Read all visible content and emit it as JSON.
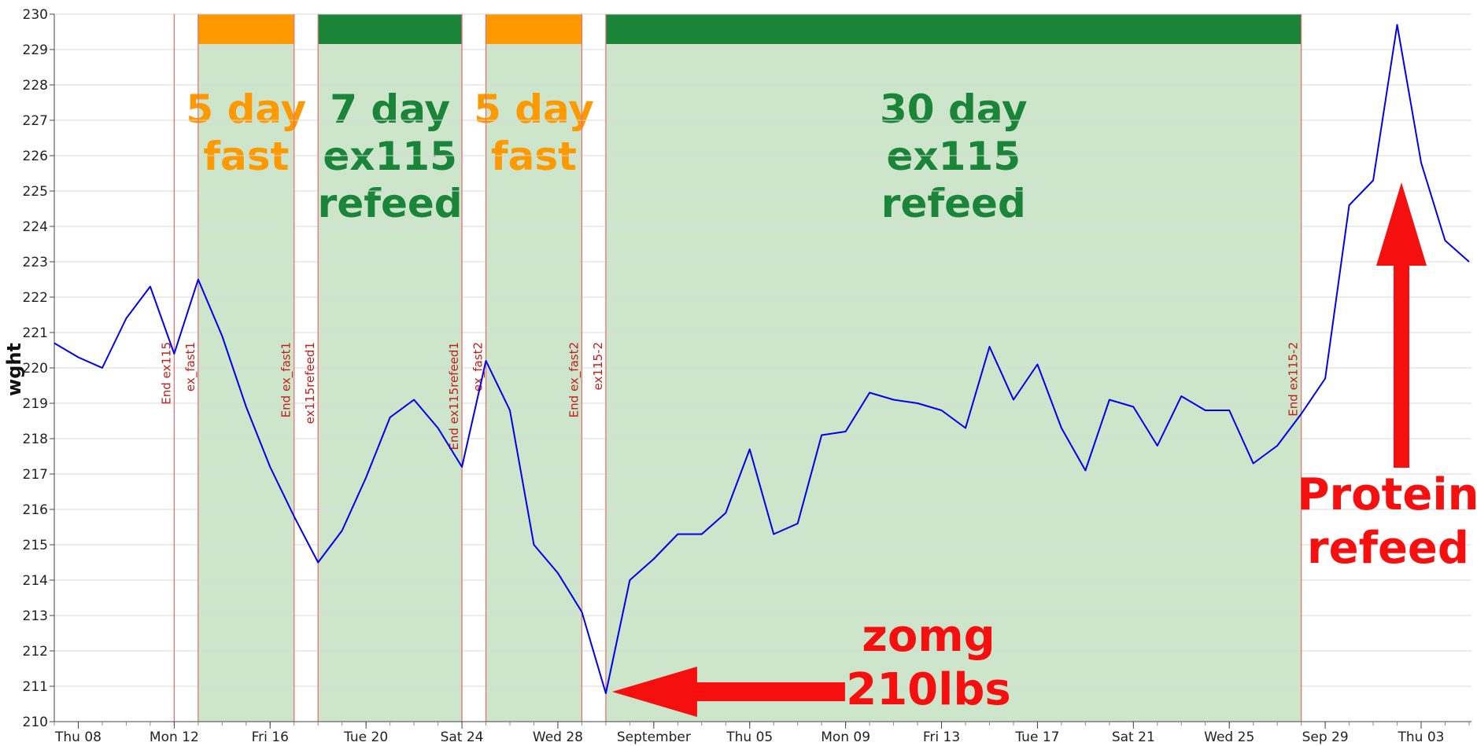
{
  "chart_data": {
    "type": "line",
    "xlabel": "",
    "ylabel": "wght",
    "ylim": [
      210,
      230
    ],
    "yticks": [
      210,
      211,
      212,
      213,
      214,
      215,
      216,
      217,
      218,
      219,
      220,
      221,
      222,
      223,
      224,
      225,
      226,
      227,
      228,
      229,
      230
    ],
    "grid": true,
    "line_color": "#0000ee",
    "x_start": "Aug 07",
    "x_tick_labels": [
      {
        "day": 1,
        "label": "Thu 08"
      },
      {
        "day": 5,
        "label": "Mon 12"
      },
      {
        "day": 9,
        "label": "Fri 16"
      },
      {
        "day": 13,
        "label": "Tue 20"
      },
      {
        "day": 17,
        "label": "Sat 24"
      },
      {
        "day": 21,
        "label": "Wed 28"
      },
      {
        "day": 25,
        "label": "September"
      },
      {
        "day": 29,
        "label": "Thu 05"
      },
      {
        "day": 33,
        "label": "Mon 09"
      },
      {
        "day": 37,
        "label": "Fri 13"
      },
      {
        "day": 41,
        "label": "Tue 17"
      },
      {
        "day": 45,
        "label": "Sat 21"
      },
      {
        "day": 49,
        "label": "Wed 25"
      },
      {
        "day": 53,
        "label": "Sep 29"
      },
      {
        "day": 57,
        "label": "Thu 03"
      }
    ],
    "x_range": [
      0,
      59.1
    ],
    "series": [
      {
        "name": "",
        "values": [
          220.7,
          220.3,
          220.0,
          221.4,
          222.3,
          220.4,
          222.5,
          220.9,
          218.9,
          217.2,
          215.8,
          214.5,
          215.4,
          216.9,
          218.6,
          219.1,
          218.3,
          217.2,
          220.2,
          218.8,
          215.0,
          214.2,
          213.1,
          210.8,
          214.0,
          214.6,
          215.3,
          215.3,
          215.9,
          217.7,
          215.3,
          215.6,
          218.1,
          218.2,
          219.3,
          219.1,
          219.0,
          218.8,
          218.3,
          220.6,
          219.1,
          220.1,
          218.3,
          217.1,
          219.1,
          218.9,
          217.8,
          219.2,
          218.8,
          218.8,
          217.3,
          217.8,
          218.7,
          219.7,
          224.6,
          225.3,
          229.7,
          225.8,
          223.6,
          223.0
        ]
      }
    ],
    "phases": [
      {
        "start": 6,
        "end": 10,
        "kind": "fast",
        "label": [
          "5 day",
          "fast"
        ]
      },
      {
        "start": 11,
        "end": 17,
        "kind": "refeed",
        "label": [
          "7 day",
          "ex115",
          "refeed"
        ]
      },
      {
        "start": 18,
        "end": 22,
        "kind": "fast",
        "label": [
          "5 day",
          "fast"
        ]
      },
      {
        "start": 23,
        "end": 52,
        "kind": "refeed",
        "label": [
          "30 day",
          "ex115",
          "refeed"
        ]
      }
    ],
    "markers": [
      {
        "day": 5,
        "label": "End ex115"
      },
      {
        "day": 6,
        "label": "ex_fast1"
      },
      {
        "day": 10,
        "label": "End ex_fast1"
      },
      {
        "day": 11,
        "label": "ex115refeed1"
      },
      {
        "day": 17,
        "label": "End ex115refeed1"
      },
      {
        "day": 18,
        "label": "ex_fast2"
      },
      {
        "day": 22,
        "label": "End ex_fast2"
      },
      {
        "day": 23,
        "label": "ex115-2"
      },
      {
        "day": 52,
        "label": "End ex115-2"
      }
    ],
    "annotations": [
      {
        "id": "zomg",
        "lines": [
          "zomg",
          "210lbs"
        ],
        "points_to_day": 23
      },
      {
        "id": "protein",
        "lines": [
          "Protein",
          "refeed"
        ],
        "points_to_day": 56
      }
    ],
    "colors": {
      "fast": "#ff9900",
      "refeed": "#1a8538",
      "phase_fill": "#cde5cb",
      "marker_line": "#e57373",
      "marker_text": "#c0201a",
      "callout": "#f50f0f"
    }
  }
}
